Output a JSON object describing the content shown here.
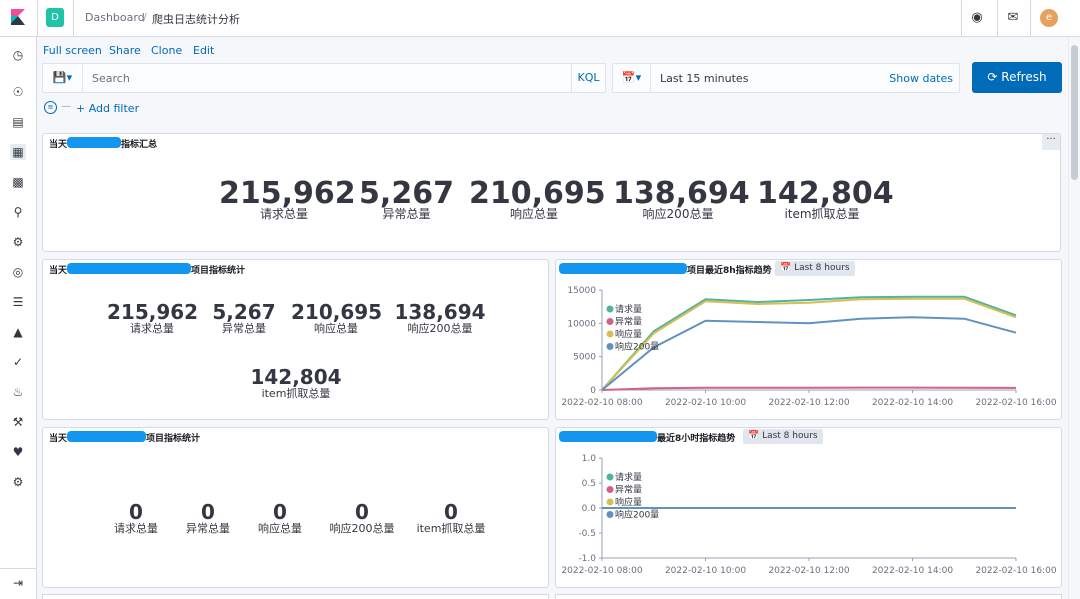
{
  "header": {
    "space_letter": "D",
    "breadcrumb_root": "Dashboard",
    "breadcrumb_separator": "/",
    "breadcrumb_current": "爬虫日志统计分析",
    "user_initial": "e"
  },
  "menu": {
    "full_screen": "Full screen",
    "share": "Share",
    "clone": "Clone",
    "edit": "Edit"
  },
  "search": {
    "placeholder": "Search",
    "language": "KQL"
  },
  "time": {
    "range": "Last 15 minutes",
    "show_dates": "Show dates",
    "refresh": "Refresh"
  },
  "filter": {
    "add": "+ Add filter"
  },
  "panels": {
    "summary": {
      "prefix": "当天",
      "suffix": "指标汇总",
      "metrics": [
        {
          "value": "215,962",
          "label": "请求总量"
        },
        {
          "value": "5,267",
          "label": "异常总量"
        },
        {
          "value": "210,695",
          "label": "响应总量"
        },
        {
          "value": "138,694",
          "label": "响应200总量"
        },
        {
          "value": "142,804",
          "label": "item抓取总量"
        }
      ]
    },
    "project_a": {
      "prefix": "当天",
      "suffix": "项目指标统计",
      "metrics": [
        {
          "value": "215,962",
          "label": "请求总量"
        },
        {
          "value": "5,267",
          "label": "异常总量"
        },
        {
          "value": "210,695",
          "label": "响应总量"
        },
        {
          "value": "138,694",
          "label": "响应200总量"
        },
        {
          "value": "142,804",
          "label": "item抓取总量"
        }
      ]
    },
    "project_b": {
      "prefix": "当天",
      "suffix": "项目指标统计",
      "metrics": [
        {
          "value": "0",
          "label": "请求总量"
        },
        {
          "value": "0",
          "label": "异常总量"
        },
        {
          "value": "0",
          "label": "响应总量"
        },
        {
          "value": "0",
          "label": "响应200总量"
        },
        {
          "value": "0",
          "label": "item抓取总量"
        }
      ]
    },
    "trend_a": {
      "suffix": "项目最近8h指标趋势",
      "badge": "Last 8 hours"
    },
    "trend_b": {
      "suffix": "最近8小时指标趋势",
      "badge": "Last 8 hours"
    }
  },
  "chart_data": [
    {
      "type": "line",
      "title": "项目最近8h指标趋势",
      "x": [
        "2022-02-10 08:00",
        "2022-02-10 09:00",
        "2022-02-10 10:00",
        "2022-02-10 11:00",
        "2022-02-10 12:00",
        "2022-02-10 13:00",
        "2022-02-10 14:00",
        "2022-02-10 15:00",
        "2022-02-10 16:00"
      ],
      "x_tick_labels": [
        "2022-02-10 08:00",
        "2022-02-10 10:00",
        "2022-02-10 12:00",
        "2022-02-10 14:00",
        "2022-02-10 16:00"
      ],
      "ylim": [
        0,
        15000
      ],
      "y_ticks": [
        "15000",
        "10000",
        "5000",
        "0"
      ],
      "series": [
        {
          "name": "请求量",
          "color": "#54b399",
          "values": [
            0,
            8800,
            13600,
            13200,
            13500,
            13900,
            14000,
            14000,
            11200
          ]
        },
        {
          "name": "异常量",
          "color": "#d36086",
          "values": [
            0,
            250,
            350,
            330,
            340,
            360,
            360,
            350,
            320
          ]
        },
        {
          "name": "响应量",
          "color": "#d6bf57",
          "values": [
            0,
            8500,
            13300,
            12900,
            13100,
            13600,
            13700,
            13700,
            10900
          ]
        },
        {
          "name": "响应200量",
          "color": "#6092c0",
          "values": [
            0,
            6400,
            10400,
            10200,
            10000,
            10700,
            10900,
            10700,
            8600
          ]
        }
      ],
      "legend_placement": "top-left"
    },
    {
      "type": "line",
      "title": "最近8小时指标趋势",
      "x": [
        "2022-02-10 08:00",
        "2022-02-10 09:00",
        "2022-02-10 10:00",
        "2022-02-10 11:00",
        "2022-02-10 12:00",
        "2022-02-10 13:00",
        "2022-02-10 14:00",
        "2022-02-10 15:00",
        "2022-02-10 16:00"
      ],
      "x_tick_labels": [
        "2022-02-10 08:00",
        "2022-02-10 10:00",
        "2022-02-10 12:00",
        "2022-02-10 14:00",
        "2022-02-10 16:00"
      ],
      "ylim": [
        -1,
        1
      ],
      "y_ticks": [
        "1.0",
        "0.5",
        "0.0",
        "-0.5",
        "-1.0"
      ],
      "series": [
        {
          "name": "请求量",
          "color": "#54b399",
          "values": [
            0,
            0,
            0,
            0,
            0,
            0,
            0,
            0,
            0
          ]
        },
        {
          "name": "异常量",
          "color": "#d36086",
          "values": [
            0,
            0,
            0,
            0,
            0,
            0,
            0,
            0,
            0
          ]
        },
        {
          "name": "响应量",
          "color": "#d6bf57",
          "values": [
            0,
            0,
            0,
            0,
            0,
            0,
            0,
            0,
            0
          ]
        },
        {
          "name": "响应200量",
          "color": "#6092c0",
          "values": [
            0,
            0,
            0,
            0,
            0,
            0,
            0,
            0,
            0
          ]
        }
      ],
      "legend_placement": "top-left"
    }
  ]
}
